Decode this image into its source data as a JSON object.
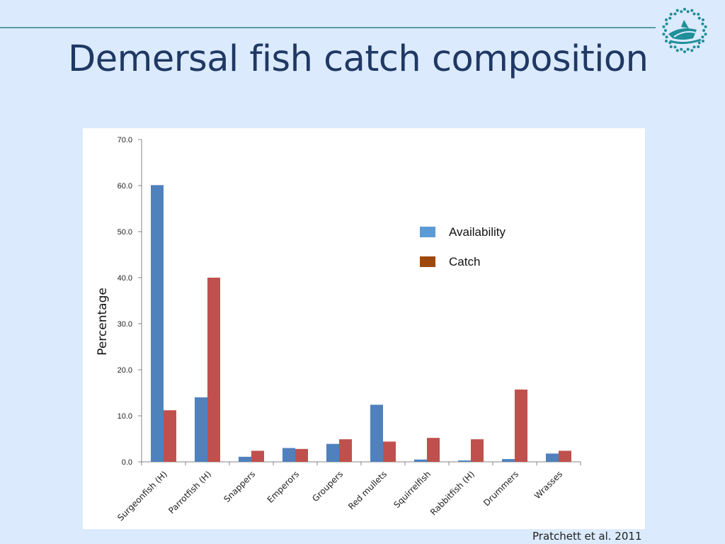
{
  "slide": {
    "title": "Demersal fish catch composition",
    "citation": "Pratchett et al. 2011"
  },
  "colors": {
    "background": "#dbeafc",
    "title": "#1f3864",
    "rule": "#5a9ea6",
    "logo": "#1f8f99"
  },
  "logo": {
    "icon": "wave-fish-logo-icon"
  },
  "chart_data": {
    "type": "bar",
    "ylabel": "Percentage",
    "xlabel": "",
    "ylim": [
      0,
      70
    ],
    "yticks": [
      "0.0",
      "10.0",
      "20.0",
      "30.0",
      "40.0",
      "50.0",
      "60.0",
      "70.0"
    ],
    "grid": false,
    "legend_position": "top-right",
    "categories": [
      "Surgeonfish (H)",
      "Parrotfish (H)",
      "Snappers",
      "Emperors",
      "Groupers",
      "Red mullets",
      "Squirrelfish",
      "Rabbitfish (H)",
      "Drummers",
      "Wrasses"
    ],
    "series": [
      {
        "name": "Availability",
        "color": "#4f81bd",
        "legend_color": "#5b9bd5",
        "values": [
          60.1,
          14.0,
          1.1,
          3.0,
          3.9,
          12.4,
          0.5,
          0.3,
          0.6,
          1.8
        ]
      },
      {
        "name": "Catch",
        "color": "#c0504d",
        "legend_color": "#9e480e",
        "values": [
          11.2,
          40.0,
          2.4,
          2.8,
          4.9,
          4.4,
          5.2,
          4.9,
          15.7,
          2.4
        ]
      }
    ]
  }
}
